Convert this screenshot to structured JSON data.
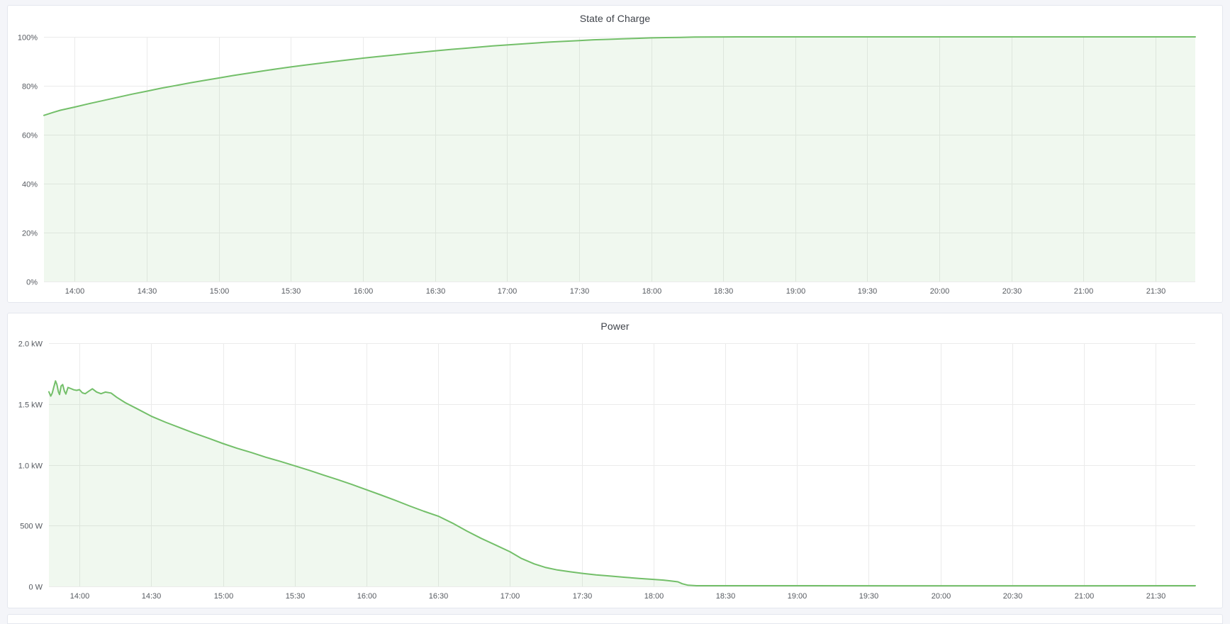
{
  "colors": {
    "page_background": "#f4f5f9",
    "panel_background": "#ffffff",
    "panel_border": "#e4e7ee",
    "grid_line": "#ebebeb",
    "axis_text": "#565a60",
    "title_text": "#3f434a",
    "series_green": "#73bf69",
    "series_fill": "rgba(115,191,105,0.11)"
  },
  "chart_data": [
    {
      "type": "area",
      "title": "State of Charge",
      "unit": "percent",
      "legend": "none",
      "grid": true,
      "x_range": [
        13.787,
        21.775
      ],
      "ylim": [
        0,
        100
      ],
      "x_ticks": [
        {
          "v": 14.0,
          "label": "14:00"
        },
        {
          "v": 14.5,
          "label": "14:30"
        },
        {
          "v": 15.0,
          "label": "15:00"
        },
        {
          "v": 15.5,
          "label": "15:30"
        },
        {
          "v": 16.0,
          "label": "16:00"
        },
        {
          "v": 16.5,
          "label": "16:30"
        },
        {
          "v": 17.0,
          "label": "17:00"
        },
        {
          "v": 17.5,
          "label": "17:30"
        },
        {
          "v": 18.0,
          "label": "18:00"
        },
        {
          "v": 18.5,
          "label": "18:30"
        },
        {
          "v": 19.0,
          "label": "19:00"
        },
        {
          "v": 19.5,
          "label": "19:30"
        },
        {
          "v": 20.0,
          "label": "20:00"
        },
        {
          "v": 20.5,
          "label": "20:30"
        },
        {
          "v": 21.0,
          "label": "21:00"
        },
        {
          "v": 21.5,
          "label": "21:30"
        }
      ],
      "y_ticks": [
        {
          "v": 0,
          "label": "0%"
        },
        {
          "v": 20,
          "label": "20%"
        },
        {
          "v": 40,
          "label": "40%"
        },
        {
          "v": 60,
          "label": "60%"
        },
        {
          "v": 80,
          "label": "80%"
        },
        {
          "v": 100,
          "label": "100%"
        }
      ],
      "series": [
        {
          "name": "State of Charge",
          "color": "#73bf69",
          "fill": "rgba(115,191,105,0.11)",
          "points": [
            [
              13.787,
              67.9
            ],
            [
              13.85,
              69.1
            ],
            [
              13.9,
              70.0
            ],
            [
              14.0,
              71.3
            ],
            [
              14.1,
              72.7
            ],
            [
              14.2,
              74.0
            ],
            [
              14.3,
              75.3
            ],
            [
              14.4,
              76.6
            ],
            [
              14.5,
              77.8
            ],
            [
              14.6,
              79.0
            ],
            [
              14.7,
              80.1
            ],
            [
              14.8,
              81.2
            ],
            [
              14.9,
              82.2
            ],
            [
              15.0,
              83.2
            ],
            [
              15.1,
              84.2
            ],
            [
              15.2,
              85.1
            ],
            [
              15.3,
              86.0
            ],
            [
              15.4,
              86.9
            ],
            [
              15.5,
              87.7
            ],
            [
              15.6,
              88.5
            ],
            [
              15.7,
              89.2
            ],
            [
              15.8,
              89.9
            ],
            [
              15.9,
              90.6
            ],
            [
              16.0,
              91.3
            ],
            [
              16.1,
              91.9
            ],
            [
              16.2,
              92.5
            ],
            [
              16.3,
              93.1
            ],
            [
              16.4,
              93.7
            ],
            [
              16.5,
              94.3
            ],
            [
              16.6,
              94.8
            ],
            [
              16.7,
              95.3
            ],
            [
              16.8,
              95.8
            ],
            [
              16.9,
              96.3
            ],
            [
              17.0,
              96.7
            ],
            [
              17.1,
              97.1
            ],
            [
              17.2,
              97.5
            ],
            [
              17.3,
              97.9
            ],
            [
              17.4,
              98.2
            ],
            [
              17.5,
              98.5
            ],
            [
              17.6,
              98.8
            ],
            [
              17.7,
              99.0
            ],
            [
              17.8,
              99.2
            ],
            [
              17.9,
              99.4
            ],
            [
              18.0,
              99.6
            ],
            [
              18.1,
              99.7
            ],
            [
              18.2,
              99.8
            ],
            [
              18.3,
              99.9
            ],
            [
              18.45,
              99.97
            ],
            [
              18.6,
              100
            ],
            [
              19.0,
              100
            ],
            [
              19.5,
              100
            ],
            [
              20.0,
              100
            ],
            [
              20.5,
              100
            ],
            [
              21.0,
              100
            ],
            [
              21.5,
              100
            ],
            [
              21.775,
              100
            ]
          ]
        }
      ]
    },
    {
      "type": "area",
      "title": "Power",
      "unit": "watt",
      "legend": "none",
      "grid": true,
      "x_range": [
        13.787,
        21.775
      ],
      "ylim": [
        0,
        2000
      ],
      "x_ticks": [
        {
          "v": 14.0,
          "label": "14:00"
        },
        {
          "v": 14.5,
          "label": "14:30"
        },
        {
          "v": 15.0,
          "label": "15:00"
        },
        {
          "v": 15.5,
          "label": "15:30"
        },
        {
          "v": 16.0,
          "label": "16:00"
        },
        {
          "v": 16.5,
          "label": "16:30"
        },
        {
          "v": 17.0,
          "label": "17:00"
        },
        {
          "v": 17.5,
          "label": "17:30"
        },
        {
          "v": 18.0,
          "label": "18:00"
        },
        {
          "v": 18.5,
          "label": "18:30"
        },
        {
          "v": 19.0,
          "label": "19:00"
        },
        {
          "v": 19.5,
          "label": "19:30"
        },
        {
          "v": 20.0,
          "label": "20:00"
        },
        {
          "v": 20.5,
          "label": "20:30"
        },
        {
          "v": 21.0,
          "label": "21:00"
        },
        {
          "v": 21.5,
          "label": "21:30"
        }
      ],
      "y_ticks": [
        {
          "v": 0,
          "label": "0 W"
        },
        {
          "v": 500,
          "label": "500 W"
        },
        {
          "v": 1000,
          "label": "1.0 kW"
        },
        {
          "v": 1500,
          "label": "1.5 kW"
        },
        {
          "v": 2000,
          "label": "2.0 kW"
        }
      ],
      "series": [
        {
          "name": "Power",
          "color": "#73bf69",
          "fill": "rgba(115,191,105,0.11)",
          "points": [
            [
              13.787,
              1600
            ],
            [
              13.8,
              1565
            ],
            [
              13.81,
              1590
            ],
            [
              13.82,
              1635
            ],
            [
              13.833,
              1690
            ],
            [
              13.843,
              1660
            ],
            [
              13.853,
              1600
            ],
            [
              13.861,
              1578
            ],
            [
              13.872,
              1648
            ],
            [
              13.883,
              1660
            ],
            [
              13.895,
              1605
            ],
            [
              13.905,
              1582
            ],
            [
              13.92,
              1636
            ],
            [
              13.94,
              1627
            ],
            [
              13.96,
              1617
            ],
            [
              13.98,
              1612
            ],
            [
              14.0,
              1618
            ],
            [
              14.02,
              1592
            ],
            [
              14.04,
              1585
            ],
            [
              14.06,
              1602
            ],
            [
              14.09,
              1625
            ],
            [
              14.12,
              1598
            ],
            [
              14.15,
              1585
            ],
            [
              14.18,
              1598
            ],
            [
              14.22,
              1590
            ],
            [
              14.26,
              1555
            ],
            [
              14.32,
              1510
            ],
            [
              14.4,
              1462
            ],
            [
              14.5,
              1400
            ],
            [
              14.6,
              1350
            ],
            [
              14.7,
              1305
            ],
            [
              14.8,
              1260
            ],
            [
              14.9,
              1218
            ],
            [
              15.0,
              1175
            ],
            [
              15.1,
              1135
            ],
            [
              15.2,
              1100
            ],
            [
              15.3,
              1062
            ],
            [
              15.4,
              1028
            ],
            [
              15.5,
              992
            ],
            [
              15.6,
              955
            ],
            [
              15.7,
              916
            ],
            [
              15.8,
              878
            ],
            [
              15.9,
              838
            ],
            [
              16.0,
              795
            ],
            [
              16.1,
              752
            ],
            [
              16.2,
              708
            ],
            [
              16.3,
              662
            ],
            [
              16.4,
              618
            ],
            [
              16.5,
              578
            ],
            [
              16.6,
              520
            ],
            [
              16.7,
              455
            ],
            [
              16.8,
              395
            ],
            [
              16.9,
              340
            ],
            [
              17.0,
              285
            ],
            [
              17.08,
              230
            ],
            [
              17.17,
              185
            ],
            [
              17.25,
              155
            ],
            [
              17.33,
              135
            ],
            [
              17.42,
              120
            ],
            [
              17.5,
              108
            ],
            [
              17.6,
              95
            ],
            [
              17.7,
              85
            ],
            [
              17.8,
              75
            ],
            [
              17.9,
              66
            ],
            [
              18.0,
              58
            ],
            [
              18.07,
              52
            ],
            [
              18.12,
              45
            ],
            [
              18.17,
              38
            ],
            [
              18.2,
              22
            ],
            [
              18.24,
              10
            ],
            [
              18.3,
              6
            ],
            [
              19.0,
              6
            ],
            [
              20.0,
              5
            ],
            [
              21.0,
              5
            ],
            [
              21.775,
              6
            ]
          ]
        }
      ]
    }
  ]
}
